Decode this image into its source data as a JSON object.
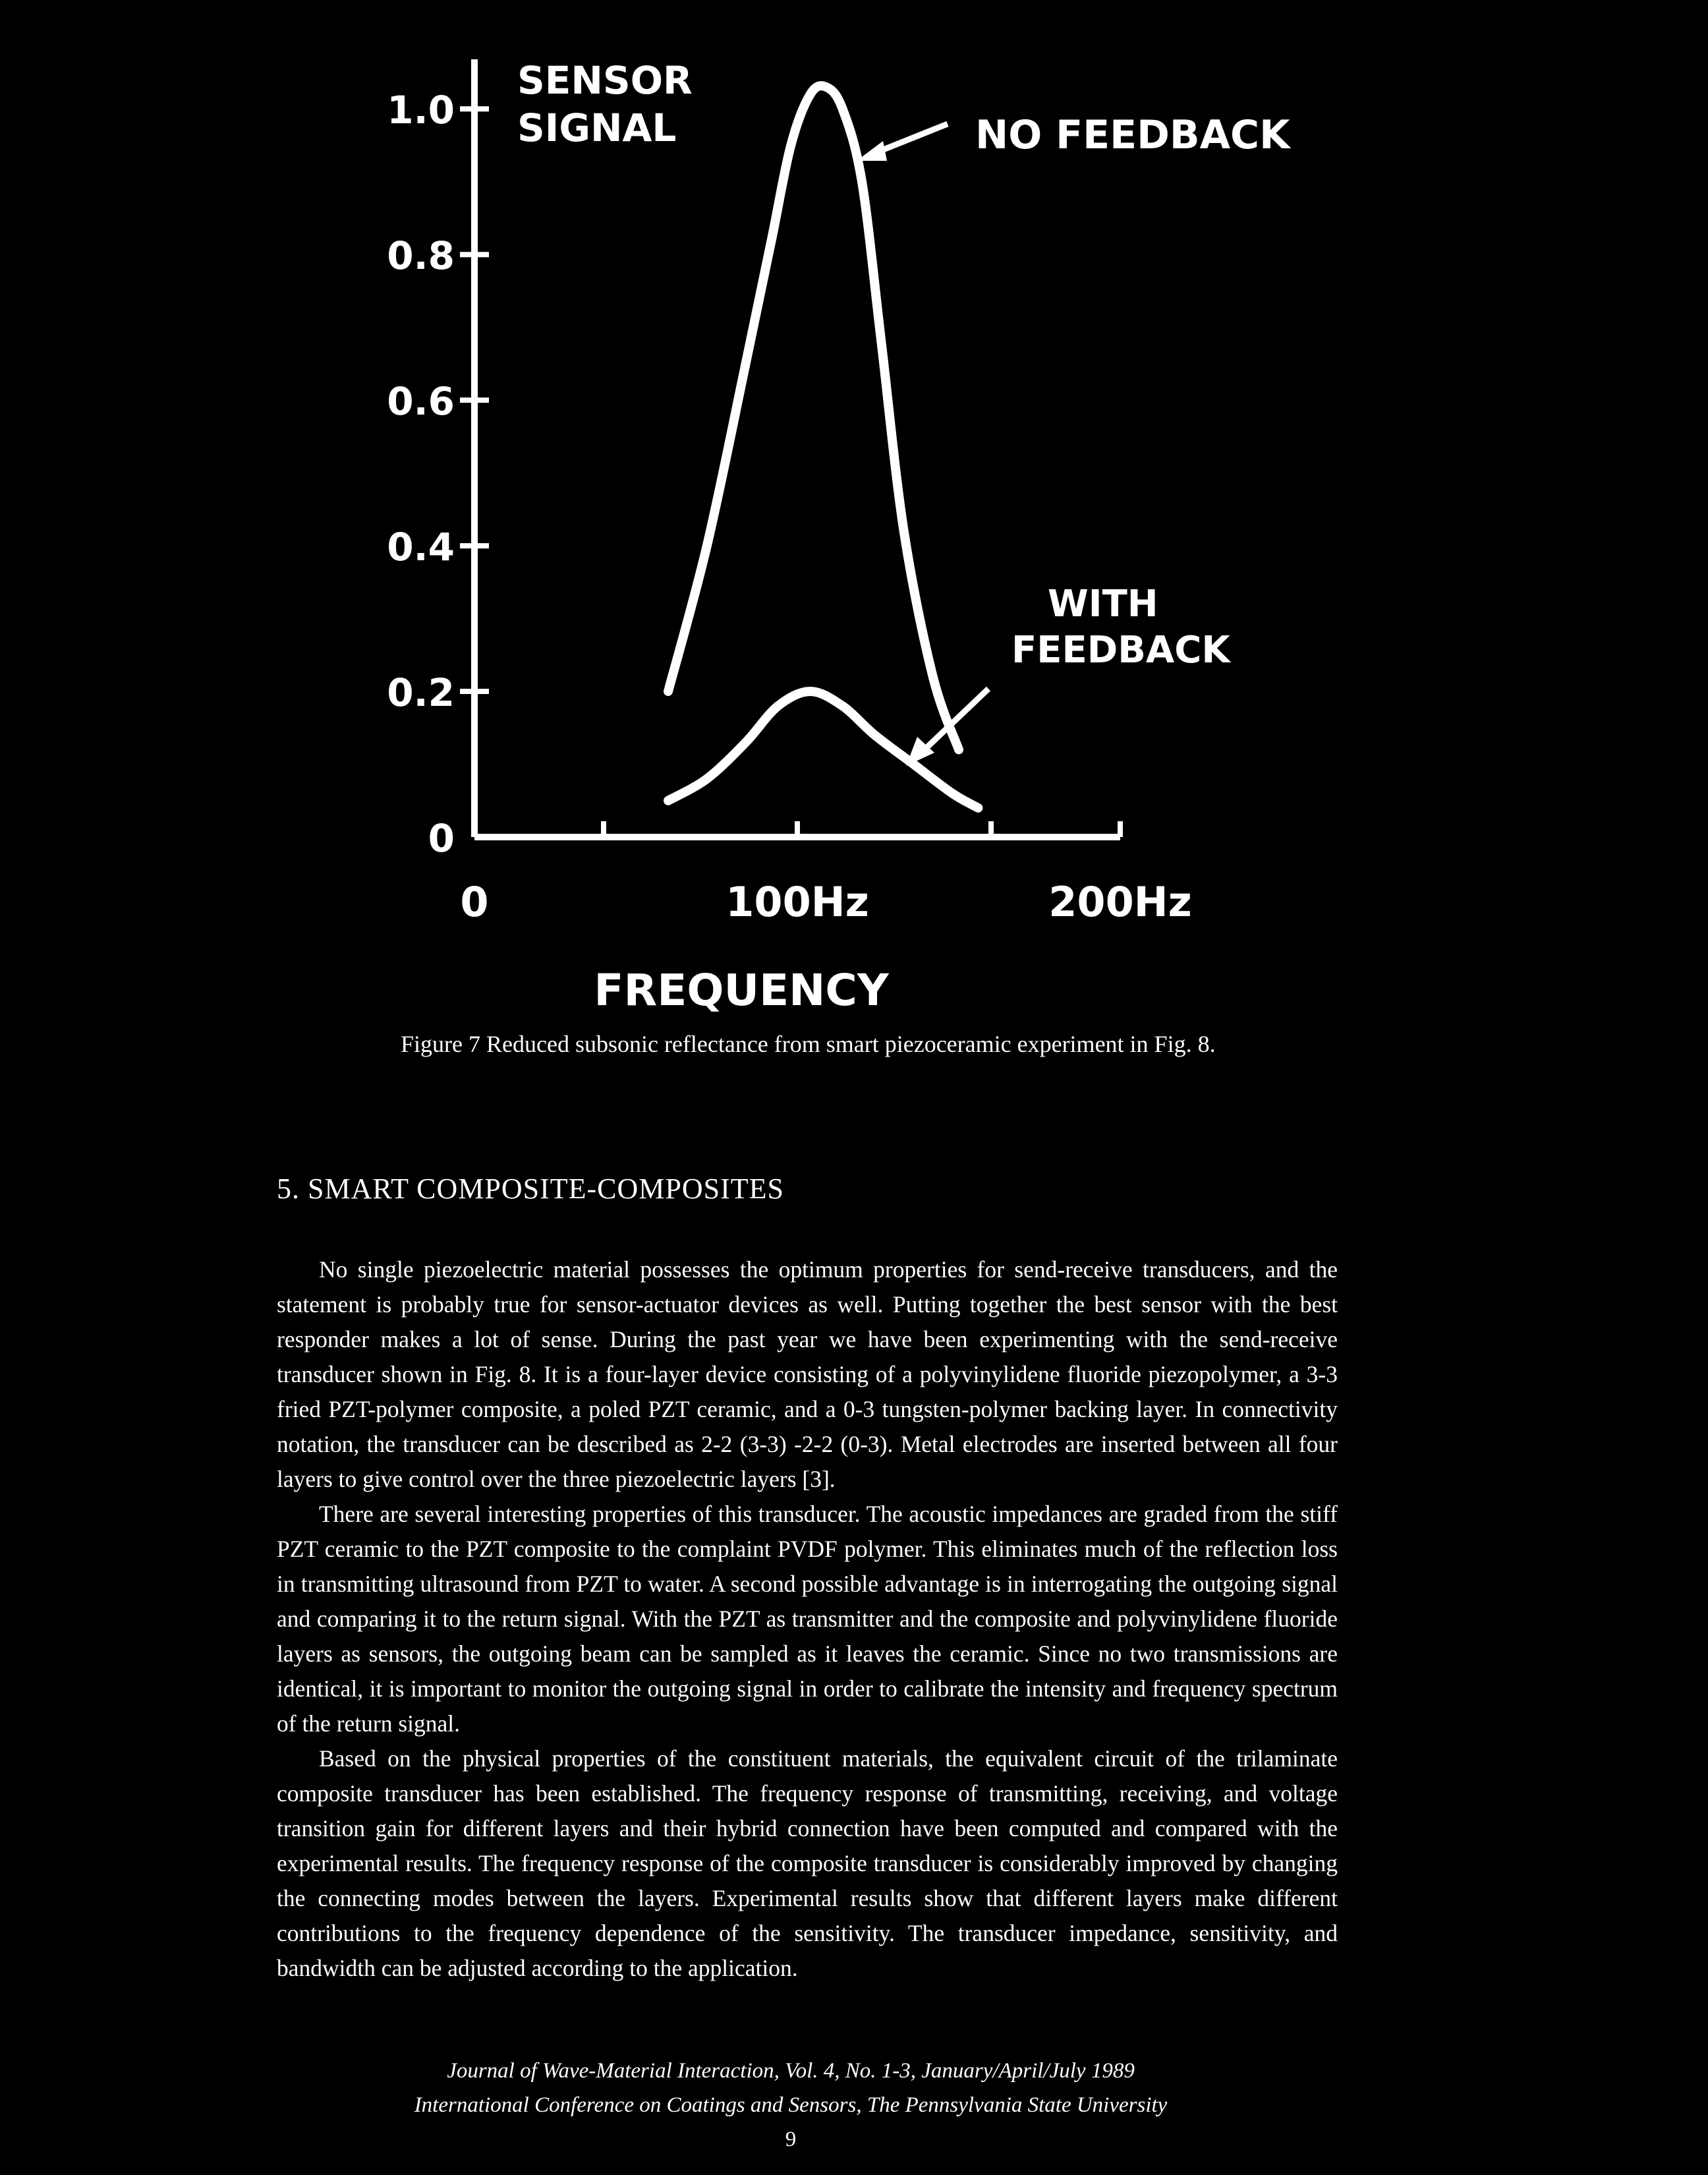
{
  "chart_data": {
    "type": "line",
    "ylabel": "SENSOR SIGNAL",
    "xlabel": "FREQUENCY",
    "y_ticks": [
      "1.0",
      "0.8",
      "0.6",
      "0.4",
      "0.2",
      "0"
    ],
    "y_tick_values": [
      1.0,
      0.8,
      0.6,
      0.4,
      0.2,
      0
    ],
    "x_ticks": [
      "0",
      "100Hz",
      "200Hz"
    ],
    "ylim": [
      0,
      1.05
    ],
    "xlim": [
      0,
      200
    ],
    "grid": false,
    "series": [
      {
        "name": "NO FEEDBACK",
        "x": [
          60,
          72,
          84,
          92,
          98,
          104,
          109,
          114,
          120,
          126,
          133,
          142,
          150
        ],
        "y": [
          0.2,
          0.4,
          0.65,
          0.82,
          0.95,
          1.02,
          1.03,
          1.0,
          0.9,
          0.68,
          0.42,
          0.22,
          0.12
        ]
      },
      {
        "name": "WITH FEEDBACK",
        "x": [
          60,
          72,
          84,
          94,
          104,
          114,
          124,
          136,
          148,
          156
        ],
        "y": [
          0.05,
          0.08,
          0.13,
          0.18,
          0.2,
          0.18,
          0.14,
          0.1,
          0.06,
          0.04
        ]
      }
    ]
  },
  "caption": "Figure 7   Reduced subsonic reflectance from smart piezoceramic experiment in Fig. 8.",
  "section_heading": "5. SMART COMPOSITE-COMPOSITES",
  "paragraphs": [
    "No single piezoelectric material possesses the optimum properties for send-receive transducers, and the statement is probably true for sensor-actuator devices as well. Putting together the best sensor with the best responder makes a lot of sense. During the past year we have been experimenting with the send-receive transducer shown in Fig. 8. It is a four-layer device consisting of a polyvinylidene fluoride piezopolymer, a 3-3 fried PZT-polymer composite, a poled PZT ceramic, and a 0-3 tungsten-polymer backing layer. In connectivity notation, the transducer can be described as 2-2 (3-3) -2-2 (0-3). Metal electrodes are inserted between all four layers to give control over the three piezoelectric layers [3].",
    "There are several interesting properties of this transducer. The acoustic impedances are graded from the stiff PZT ceramic to the PZT composite to the complaint PVDF polymer. This eliminates much of the reflection loss in transmitting ultrasound from PZT to water. A second possible advantage is in interrogating the outgoing signal and comparing it to the return signal. With the PZT as transmitter and the composite and polyvinylidene fluoride layers as sensors, the outgoing beam can be sampled as it leaves the ceramic. Since no two transmissions are identical, it is important to monitor the outgoing signal in order to calibrate the intensity and frequency spectrum of the return signal.",
    "Based on the physical properties of the constituent materials, the equivalent circuit of the trilaminate composite transducer has been established. The frequency response of transmitting, receiving, and voltage transition gain for different layers and their hybrid connection have been computed and compared with the experimental results. The frequency response of the composite transducer is considerably improved by changing the connecting modes between the layers. Experimental results show that different layers make different contributions to the frequency dependence of the sensitivity. The transducer impedance, sensitivity, and bandwidth can be adjusted according to the application."
  ],
  "footer": {
    "line1": "Journal of Wave-Material Interaction, Vol. 4, No. 1-3, January/April/July 1989",
    "line2": "International Conference on Coatings and Sensors, The Pennsylvania State University",
    "page": "9"
  },
  "colors": {
    "background": "#000000",
    "ink": "#ffffff"
  }
}
